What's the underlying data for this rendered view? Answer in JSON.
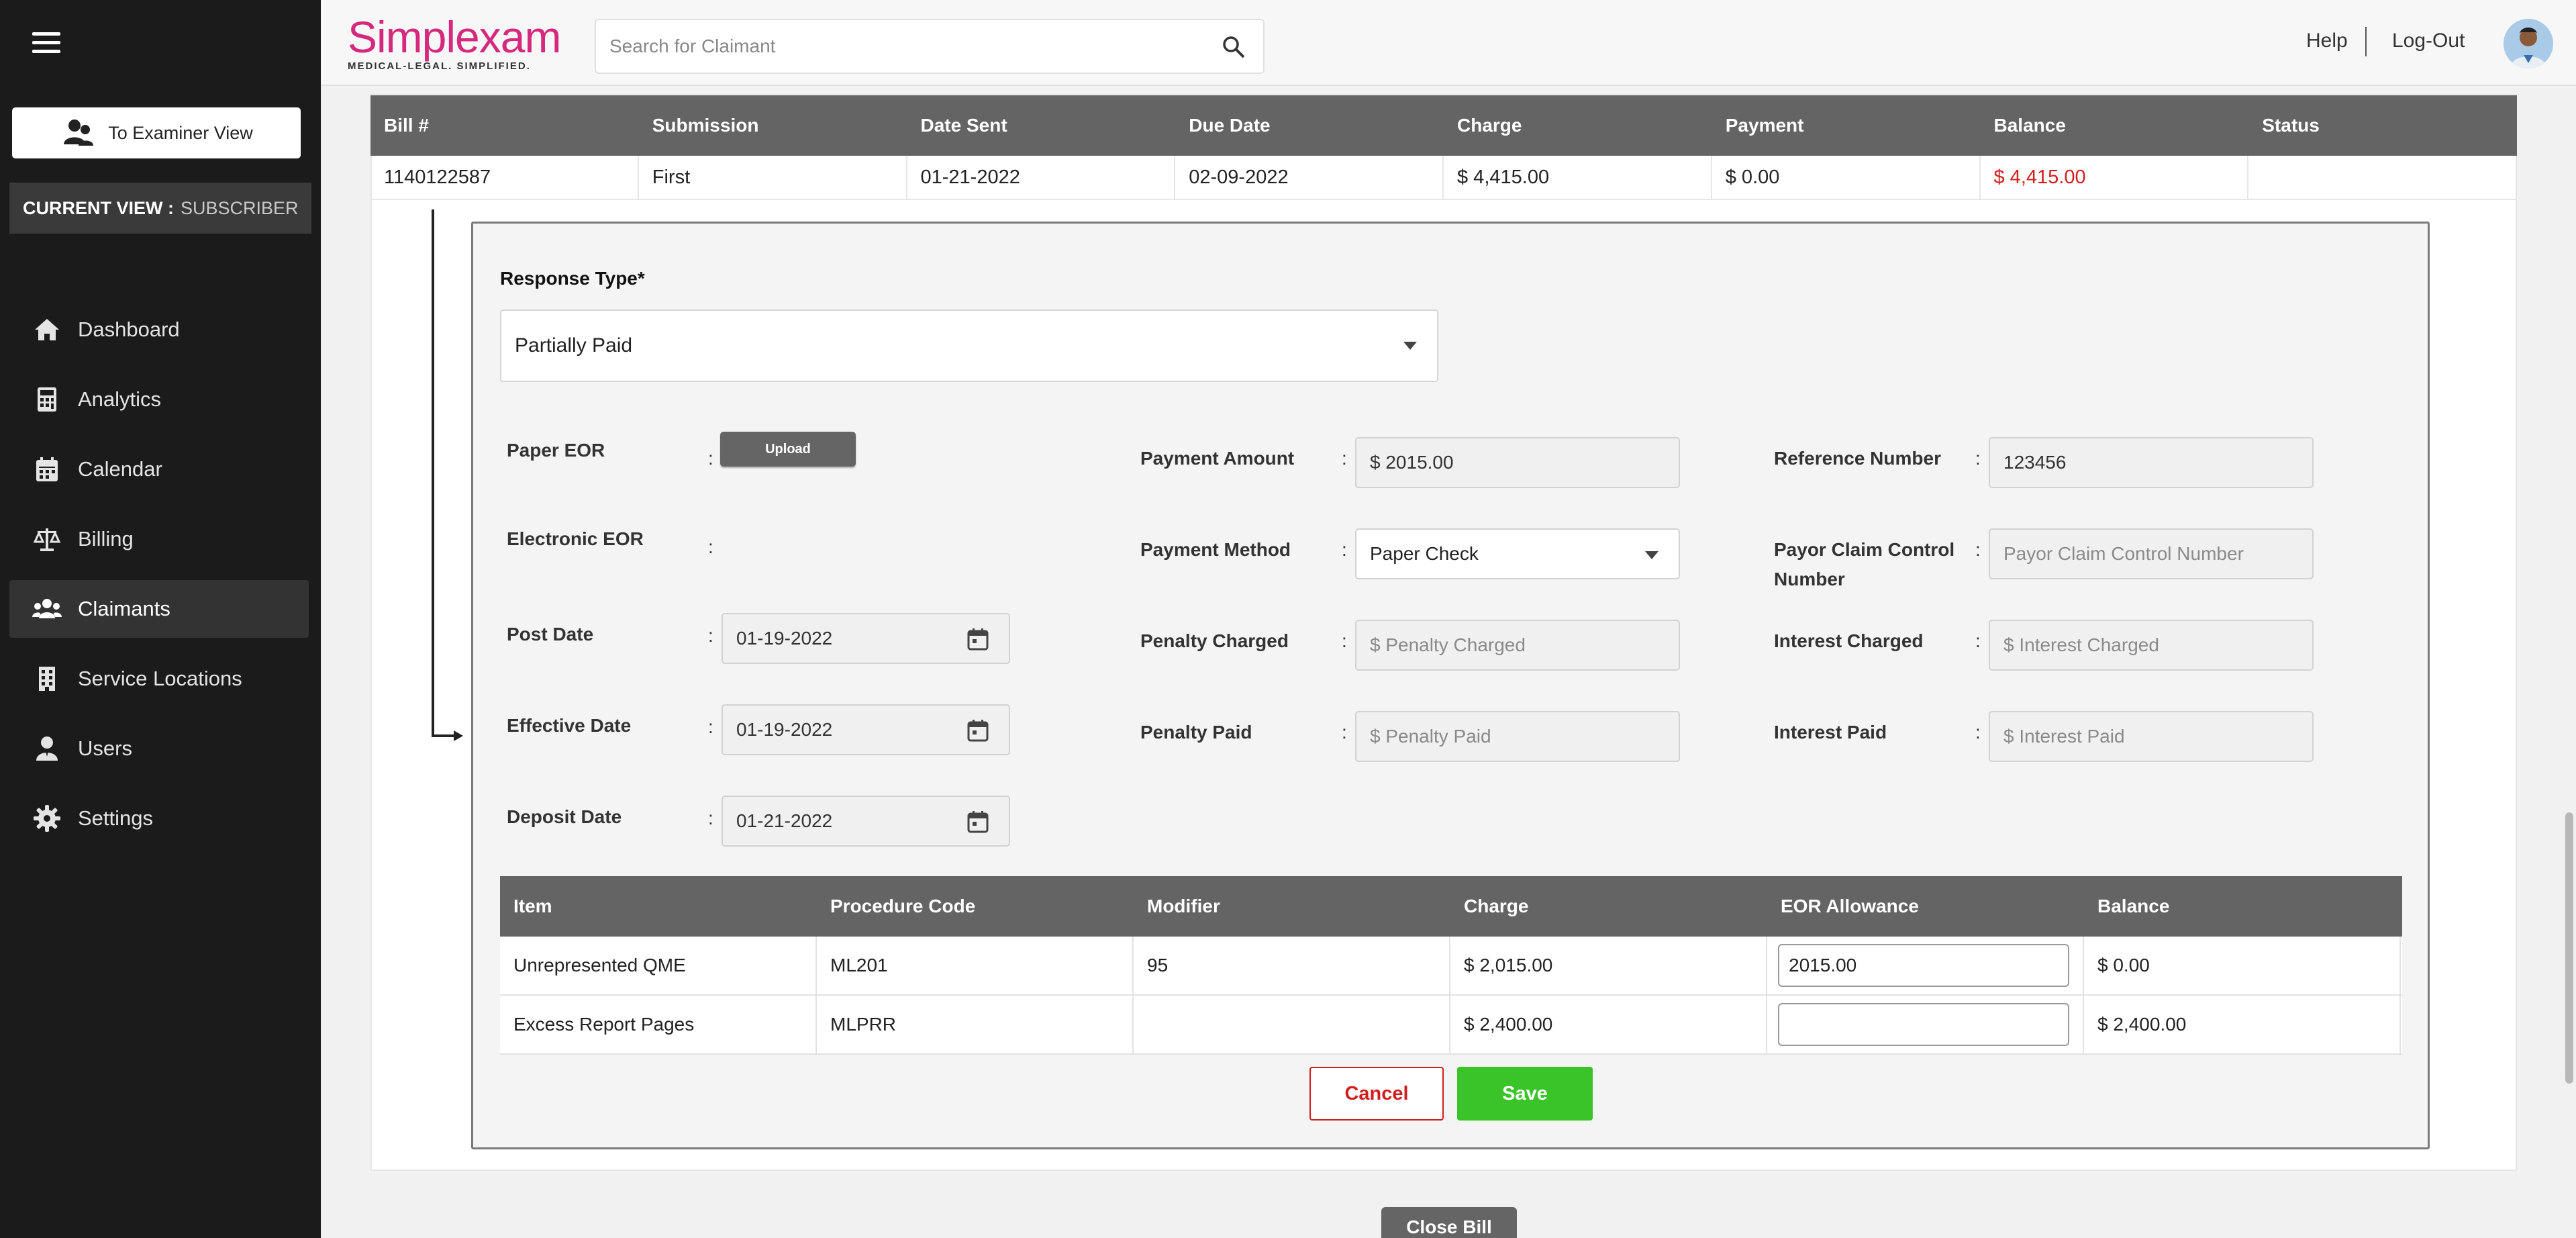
{
  "sidebar": {
    "examiner_button": "To Examiner View",
    "current_view_label": "CURRENT VIEW :",
    "current_view_value": "SUBSCRIBER",
    "items": [
      {
        "label": "Dashboard",
        "icon": "home-icon"
      },
      {
        "label": "Analytics",
        "icon": "calculator-icon"
      },
      {
        "label": "Calendar",
        "icon": "calendar-icon"
      },
      {
        "label": "Billing",
        "icon": "scale-icon"
      },
      {
        "label": "Claimants",
        "icon": "users-group-icon",
        "active": true
      },
      {
        "label": "Service Locations",
        "icon": "building-icon"
      },
      {
        "label": "Users",
        "icon": "user-icon"
      },
      {
        "label": "Settings",
        "icon": "gear-icon"
      }
    ]
  },
  "header": {
    "logo": "Simplexam",
    "logo_tagline": "MEDICAL-LEGAL. SIMPLIFIED.",
    "search_placeholder": "Search for Claimant",
    "help": "Help",
    "logout": "Log-Out"
  },
  "bill_table": {
    "columns": [
      "Bill #",
      "Submission",
      "Date Sent",
      "Due Date",
      "Charge",
      "Payment",
      "Balance",
      "Status"
    ],
    "row": [
      "1140122587",
      "First",
      "01-21-2022",
      "02-09-2022",
      "$ 4,415.00",
      "$ 0.00",
      "$ 4,415.00",
      ""
    ]
  },
  "form": {
    "response_type_label": "Response Type*",
    "response_type_value": "Partially Paid",
    "paper_eor_label": "Paper EOR",
    "upload_button": "Upload",
    "electronic_eor_label": "Electronic EOR",
    "post_date_label": "Post Date",
    "post_date_value": "01-19-2022",
    "effective_date_label": "Effective Date",
    "effective_date_value": "01-19-2022",
    "deposit_date_label": "Deposit Date",
    "deposit_date_value": "01-21-2022",
    "payment_amount_label": "Payment Amount",
    "payment_amount_value": "$ 2015.00",
    "payment_method_label": "Payment Method",
    "payment_method_value": "Paper Check",
    "penalty_charged_label": "Penalty Charged",
    "penalty_charged_placeholder": "$ Penalty Charged",
    "penalty_paid_label": "Penalty Paid",
    "penalty_paid_placeholder": "$ Penalty Paid",
    "reference_number_label": "Reference Number",
    "reference_number_value": "123456",
    "payor_claim_label_1": "Payor Claim Control",
    "payor_claim_label_2": "Number",
    "payor_claim_placeholder": "Payor Claim Control Number",
    "interest_charged_label": "Interest Charged",
    "interest_charged_placeholder": "$ Interest Charged",
    "interest_paid_label": "Interest Paid",
    "interest_paid_placeholder": "$ Interest Paid",
    "colon": ":"
  },
  "items_table": {
    "columns": [
      "Item",
      "Procedure Code",
      "Modifier",
      "Charge",
      "EOR Allowance",
      "Balance"
    ],
    "rows": [
      {
        "item": "Unrepresented QME",
        "code": "ML201",
        "modifier": "95",
        "charge": "$ 2,015.00",
        "allowance": "2015.00",
        "balance": "$ 0.00"
      },
      {
        "item": "Excess Report Pages",
        "code": "MLPRR",
        "modifier": "",
        "charge": "$ 2,400.00",
        "allowance": "",
        "balance": "$ 2,400.00"
      }
    ]
  },
  "actions": {
    "cancel": "Cancel",
    "save": "Save",
    "close_bill": "Close Bill"
  },
  "colors": {
    "sidebar_bg": "#1b1b1b",
    "brand_pink": "#d4297d",
    "table_header": "#646464",
    "save_green": "#3ac42a",
    "cancel_red": "#d01e1e"
  }
}
